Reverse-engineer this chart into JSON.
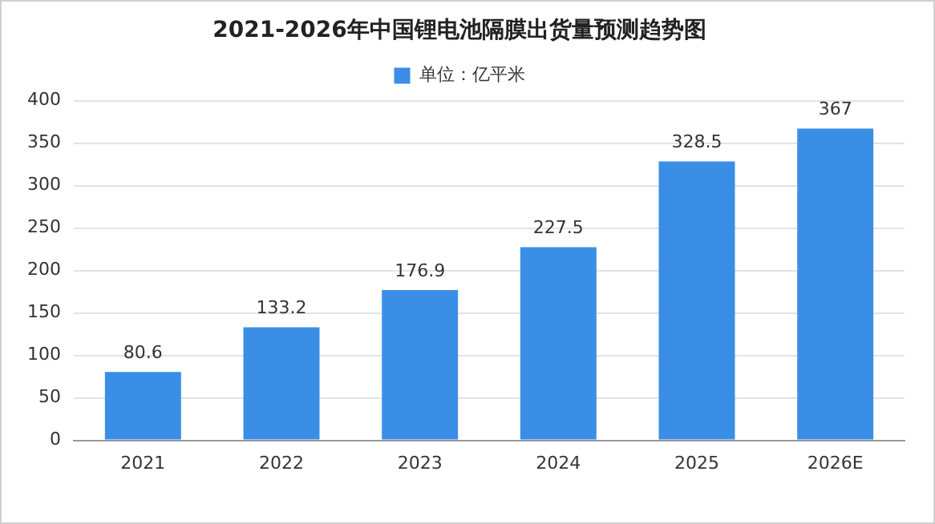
{
  "chart_data": {
    "type": "bar",
    "title": "2021-2026年中国锂电池隔膜出货量预测趋势图",
    "categories": [
      "2021",
      "2022",
      "2023",
      "2024",
      "2025",
      "2026E"
    ],
    "series": [
      {
        "name": "单位：亿平米",
        "color": "#3a8ee6",
        "values": [
          80.6,
          133.2,
          176.9,
          227.5,
          328.5,
          367
        ]
      }
    ],
    "ylim": [
      0,
      400
    ],
    "yticks": [
      0,
      50,
      100,
      150,
      200,
      250,
      300,
      350,
      400
    ],
    "grid": "y",
    "legend": "top",
    "data_labels": true
  }
}
